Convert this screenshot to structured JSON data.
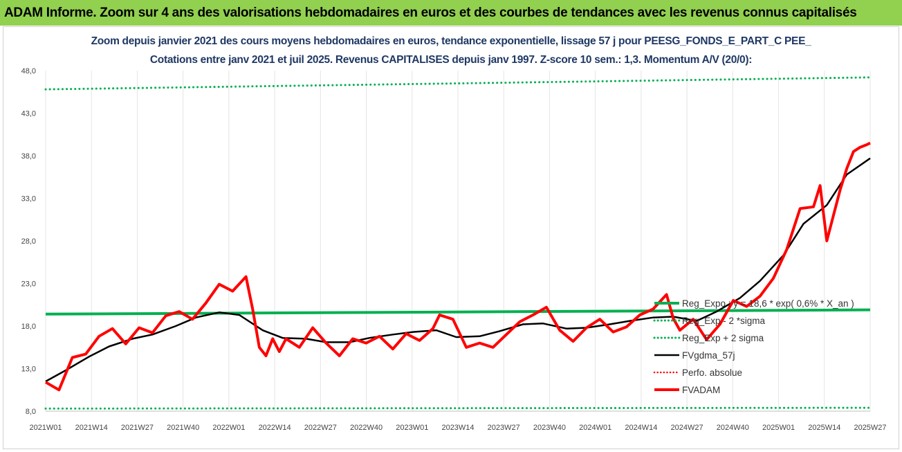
{
  "header": {
    "banner": "ADAM Informe. Zoom sur 4 ans des valorisations hebdomadaires en euros et des courbes de tendances avec les revenus connus capitalisés"
  },
  "chart_data": {
    "type": "line",
    "title": "Zoom depuis janvier 2021 des cours moyens hebdomadaires en euros, tendance exponentielle, lissage 57 j pour PEESG_FONDS_E_PART_C PEE_",
    "subtitle": "Cotations entre janv 2021 et juil 2025. Revenus CAPITALISES depuis janv 1997. Z-score 10 sem.: 1,3. Momentum A/V (20/0):",
    "xlabel": "",
    "ylabel": "",
    "ylim": [
      8,
      48
    ],
    "y_ticks": [
      "48,0",
      "43,0",
      "38,0",
      "33,0",
      "28,0",
      "23,0",
      "18,0",
      "13,0",
      "8,0"
    ],
    "x_ticks": [
      "2021W01",
      "2021W14",
      "2021W27",
      "2021W40",
      "2022W01",
      "2022W14",
      "2022W27",
      "2022W40",
      "2023W01",
      "2023W14",
      "2023W27",
      "2023W40",
      "2024W01",
      "2024W14",
      "2024W27",
      "2024W40",
      "2025W01",
      "2025W14",
      "2025W27"
    ],
    "grid": "vertical",
    "legend_position": "right",
    "legend": [
      "Reg_Expo : y = 18,6 * exp( 0,6% * X_an )",
      "Reg_Exp - 2 *sigma",
      "Reg_Exp + 2 sigma",
      "FVgdma_57j",
      "Perfo. absolue",
      "FVADAM"
    ],
    "series": [
      {
        "name": "Reg_Expo : y = 18,6 * exp( 0,6% * X_an )",
        "color": "#00b050",
        "style": "solid",
        "x": [
          0,
          247
        ],
        "y": [
          19.4,
          19.9
        ]
      },
      {
        "name": "Reg_Exp - 2 *sigma",
        "color": "#00b050",
        "style": "dotted",
        "x": [
          0,
          247
        ],
        "y": [
          8.3,
          8.4
        ]
      },
      {
        "name": "Reg_Exp + 2 sigma",
        "color": "#00b050",
        "style": "dotted",
        "x": [
          0,
          247
        ],
        "y": [
          45.8,
          47.2
        ]
      },
      {
        "name": "FVgdma_57j",
        "color": "#000000",
        "style": "solid",
        "x": [
          0,
          6,
          13,
          19,
          26,
          32,
          39,
          45,
          52,
          58,
          65,
          71,
          78,
          84,
          91,
          97,
          104,
          110,
          117,
          123,
          130,
          136,
          143,
          149,
          156,
          162,
          169,
          175,
          182,
          188,
          195,
          201,
          208,
          214,
          221,
          227,
          234,
          240,
          247
        ],
        "y": [
          11.5,
          12.8,
          14.4,
          15.6,
          16.5,
          17.0,
          18.0,
          19.0,
          19.6,
          19.3,
          17.5,
          16.6,
          16.5,
          16.1,
          16.1,
          16.6,
          17.0,
          17.3,
          17.5,
          16.7,
          16.8,
          17.4,
          18.2,
          18.3,
          17.7,
          17.8,
          18.2,
          18.6,
          19.0,
          19.1,
          18.6,
          19.7,
          21.3,
          23.3,
          26.3,
          30.0,
          32.2,
          35.8,
          37.7
        ]
      },
      {
        "name": "FVADAM",
        "color": "#ff0000",
        "style": "solid",
        "x": [
          0,
          4,
          8,
          12,
          16,
          20,
          24,
          28,
          32,
          36,
          40,
          44,
          48,
          52,
          56,
          60,
          62,
          64,
          66,
          68,
          70,
          72,
          76,
          80,
          84,
          88,
          92,
          96,
          100,
          104,
          108,
          112,
          116,
          118,
          122,
          126,
          130,
          134,
          138,
          142,
          146,
          150,
          154,
          158,
          162,
          166,
          170,
          174,
          178,
          182,
          186,
          188,
          190,
          194,
          198,
          202,
          206,
          210,
          214,
          218,
          222,
          226,
          230,
          232,
          234,
          236,
          238,
          240,
          242,
          244,
          246,
          247
        ],
        "y": [
          11.4,
          10.5,
          14.3,
          14.7,
          16.8,
          17.7,
          15.9,
          17.8,
          17.2,
          19.2,
          19.7,
          18.8,
          20.7,
          22.9,
          22.1,
          23.8,
          20.0,
          15.5,
          14.5,
          16.5,
          15.0,
          16.5,
          15.5,
          17.8,
          16.0,
          14.5,
          16.5,
          16.0,
          16.8,
          15.3,
          17.1,
          16.3,
          17.7,
          19.3,
          18.8,
          15.5,
          16.0,
          15.5,
          17.0,
          18.5,
          19.3,
          20.2,
          17.5,
          16.2,
          17.8,
          18.8,
          17.3,
          17.9,
          19.3,
          20.0,
          21.7,
          18.9,
          17.5,
          18.8,
          16.4,
          18.2,
          21.0,
          20.3,
          21.5,
          23.6,
          27.0,
          31.8,
          32.0,
          34.5,
          28.0,
          31.0,
          34.0,
          36.5,
          38.5,
          39.0,
          39.3,
          39.5
        ]
      }
    ]
  }
}
